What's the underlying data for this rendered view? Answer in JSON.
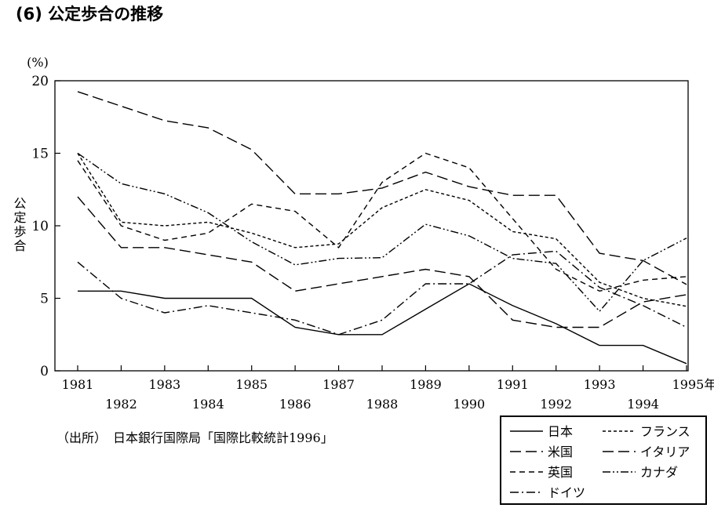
{
  "title": "(6) 公定歩合の推移",
  "source": "（出所）　日本銀行国際局「国際比較統計1996」",
  "chart_data": {
    "type": "line",
    "title": "(6) 公定歩合の推移",
    "ylabel": "公定歩合",
    "yunit": "(%)",
    "ylim": [
      0,
      20
    ],
    "yticks": [
      0,
      5,
      10,
      15,
      20
    ],
    "x": [
      1981,
      1982,
      1983,
      1984,
      1985,
      1986,
      1987,
      1988,
      1989,
      1990,
      1991,
      1992,
      1993,
      1994,
      1995
    ],
    "xtick_labels": [
      "1981",
      "1982",
      "1983",
      "1984",
      "1985",
      "1986",
      "1987",
      "1988",
      "1989",
      "1990",
      "1991",
      "1992",
      "1993",
      "1994",
      "1995年"
    ],
    "grid": false,
    "legend_position": "bottom-right",
    "series": [
      {
        "name": "日本",
        "style": "solid",
        "values": [
          5.5,
          5.5,
          5.0,
          5.0,
          5.0,
          3.0,
          2.5,
          2.5,
          4.25,
          6.0,
          4.5,
          3.25,
          1.75,
          1.75,
          0.5
        ]
      },
      {
        "name": "米国",
        "style": "long-dash",
        "values": [
          12.0,
          8.5,
          8.5,
          8.0,
          7.5,
          5.5,
          6.0,
          6.5,
          7.0,
          6.5,
          3.5,
          3.0,
          3.0,
          4.75,
          5.25
        ]
      },
      {
        "name": "英国",
        "style": "short-dash",
        "values": [
          14.5,
          10.0,
          9.0,
          9.5,
          11.5,
          11.0,
          8.5,
          13.0,
          15.0,
          14.0,
          10.5,
          7.0,
          5.5,
          6.25,
          6.5
        ]
      },
      {
        "name": "ドイツ",
        "style": "dash-dot",
        "values": [
          7.5,
          5.0,
          4.0,
          4.5,
          4.0,
          3.5,
          2.5,
          3.5,
          6.0,
          6.0,
          8.0,
          8.25,
          5.75,
          4.5,
          3.0
        ]
      },
      {
        "name": "フランス",
        "style": "fine-dash",
        "values": [
          15.0,
          10.25,
          10.0,
          10.25,
          9.5,
          8.5,
          8.75,
          11.25,
          12.5,
          11.75,
          9.6,
          9.1,
          6.1,
          5.0,
          4.45
        ]
      },
      {
        "name": "イタリア",
        "style": "long-dash",
        "values": [
          19.25,
          18.25,
          17.25,
          16.75,
          15.25,
          12.2,
          12.2,
          12.6,
          13.7,
          12.7,
          12.1,
          12.1,
          8.1,
          7.6,
          5.95
        ]
      },
      {
        "name": "カナダ",
        "style": "dash-dot-dot",
        "values": [
          15.0,
          12.9,
          12.2,
          10.9,
          8.9,
          7.3,
          7.75,
          7.8,
          10.1,
          9.3,
          7.75,
          7.4,
          4.1,
          7.6,
          9.15
        ]
      }
    ]
  }
}
